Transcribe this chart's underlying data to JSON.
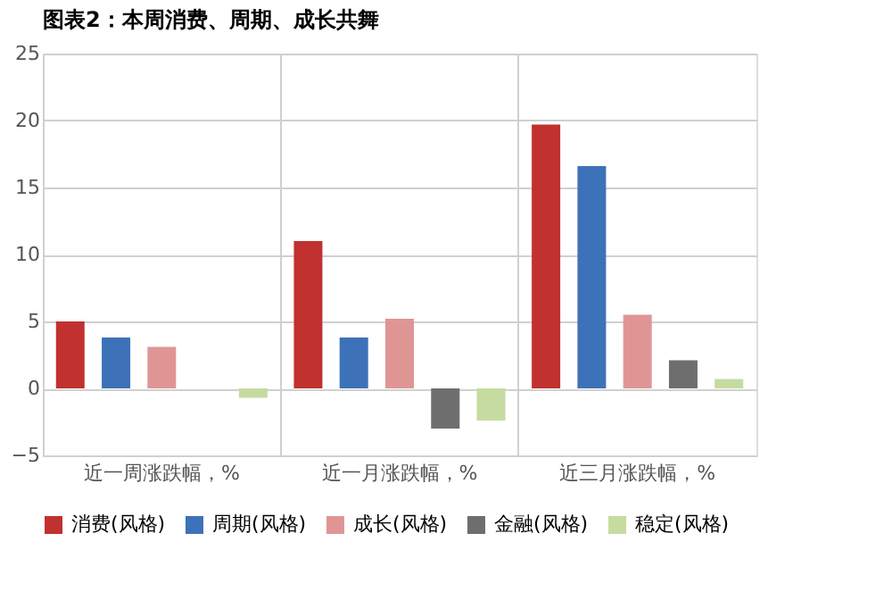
{
  "chart_data": {
    "type": "bar",
    "title": "图表2：本周消费、周期、成长共舞",
    "categories": [
      "近一周涨跌幅，%",
      "近一月涨跌幅，%",
      "近三月涨跌幅，%"
    ],
    "series": [
      {
        "name": "消费(风格)",
        "color": "#c0312f",
        "values": [
          5.0,
          11.0,
          19.7
        ]
      },
      {
        "name": "周期(风格)",
        "color": "#3d72b8",
        "values": [
          3.8,
          3.8,
          16.6
        ]
      },
      {
        "name": "成长(风格)",
        "color": "#e09595",
        "values": [
          3.1,
          5.2,
          5.5
        ]
      },
      {
        "name": "金融(风格)",
        "color": "#6e6e6e",
        "values": [
          0,
          -3.0,
          2.1
        ]
      },
      {
        "name": "稳定(风格)",
        "color": "#c5dba0",
        "values": [
          -0.7,
          -2.4,
          0.7
        ]
      }
    ],
    "ylim": [
      -5,
      25
    ],
    "yticks": [
      -5,
      0,
      5,
      10,
      15,
      20,
      25
    ],
    "grid": true,
    "legend": "bottom"
  }
}
